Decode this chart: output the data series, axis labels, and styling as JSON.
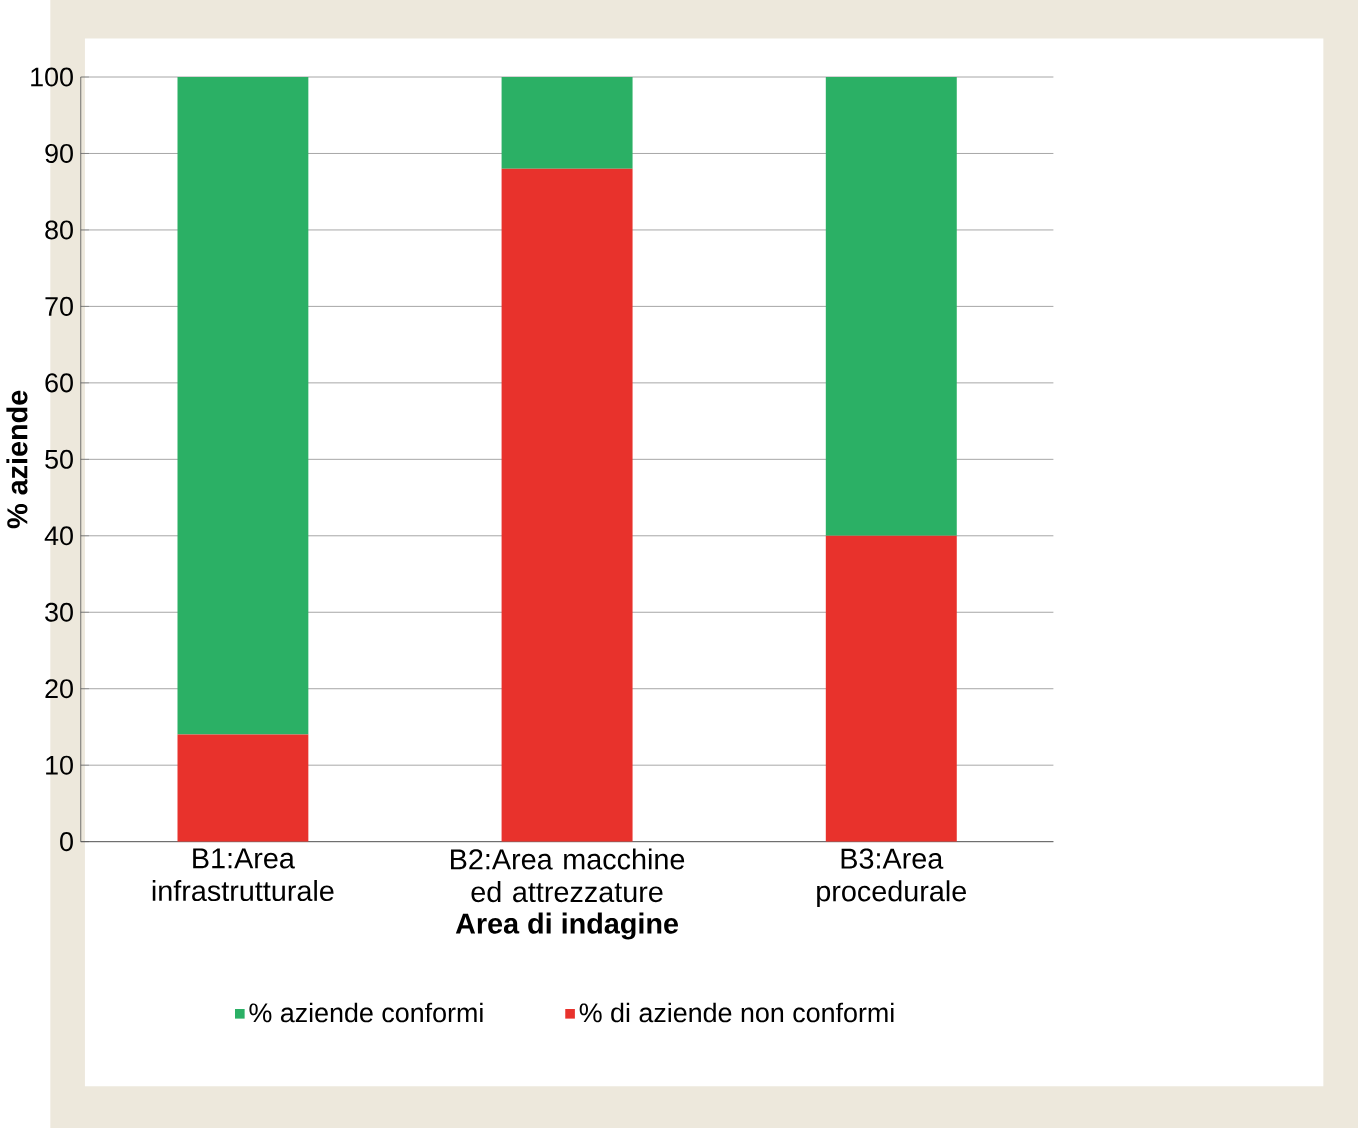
{
  "chart_data": {
    "type": "bar",
    "stacked": true,
    "xlabel": "Area di indagine",
    "ylabel": "% aziende",
    "categories": [
      "B1:Area infrastrutturale",
      "B2:Area macchine ed attrezzature",
      "B3:Area procedurale"
    ],
    "series": [
      {
        "name": "% di aziende non conformi",
        "color": "#e8322c",
        "values": [
          14,
          88,
          40
        ]
      },
      {
        "name": "% aziende conformi",
        "color": "#2bb065",
        "values": [
          86,
          12,
          60
        ]
      }
    ],
    "ylim": [
      0,
      100
    ],
    "yticks": [
      0,
      10,
      20,
      30,
      40,
      50,
      60,
      70,
      80,
      90,
      100
    ],
    "grid": "y",
    "legend": "bottom"
  }
}
